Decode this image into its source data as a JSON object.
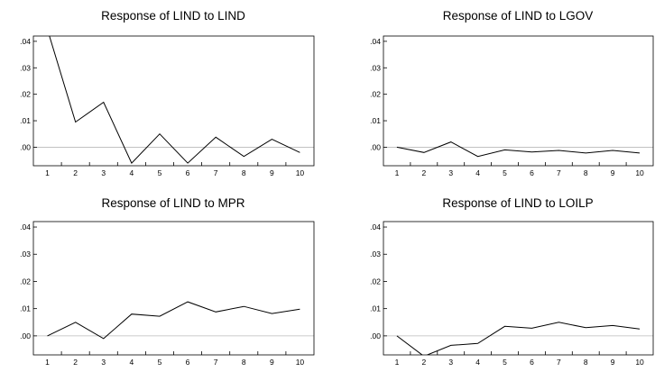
{
  "chart_data": [
    {
      "type": "line",
      "title": "Response of LIND to LIND",
      "x": [
        1,
        2,
        3,
        4,
        5,
        6,
        7,
        8,
        9,
        10
      ],
      "series": [
        {
          "values": [
            0.0446,
            0.0095,
            0.017,
            -0.006,
            0.005,
            -0.006,
            0.0038,
            -0.0035,
            0.003,
            -0.002
          ]
        }
      ],
      "ylim": [
        -0.007,
        0.042
      ],
      "yticks": [
        ".00",
        ".01",
        ".02",
        ".03",
        ".04"
      ],
      "xticks": [
        "1",
        "2",
        "3",
        "4",
        "5",
        "6",
        "7",
        "8",
        "9",
        "10"
      ],
      "zero_line": true
    },
    {
      "type": "line",
      "title": "Response of LIND to LGOV",
      "x": [
        1,
        2,
        3,
        4,
        5,
        6,
        7,
        8,
        9,
        10
      ],
      "series": [
        {
          "values": [
            0.0,
            -0.002,
            0.002,
            -0.0035,
            -0.001,
            -0.0018,
            -0.0012,
            -0.0022,
            -0.0012,
            -0.0022
          ]
        }
      ],
      "ylim": [
        -0.007,
        0.042
      ],
      "yticks": [
        ".00",
        ".01",
        ".02",
        ".03",
        ".04"
      ],
      "xticks": [
        "1",
        "2",
        "3",
        "4",
        "5",
        "6",
        "7",
        "8",
        "9",
        "10"
      ],
      "zero_line": true
    },
    {
      "type": "line",
      "title": "Response of LIND to MPR",
      "x": [
        1,
        2,
        3,
        4,
        5,
        6,
        7,
        8,
        9,
        10
      ],
      "series": [
        {
          "values": [
            0.0,
            0.005,
            -0.001,
            0.008,
            0.0072,
            0.0125,
            0.0088,
            0.0108,
            0.0082,
            0.0098
          ]
        }
      ],
      "ylim": [
        -0.007,
        0.042
      ],
      "yticks": [
        ".00",
        ".01",
        ".02",
        ".03",
        ".04"
      ],
      "xticks": [
        "1",
        "2",
        "3",
        "4",
        "5",
        "6",
        "7",
        "8",
        "9",
        "10"
      ],
      "zero_line": true
    },
    {
      "type": "line",
      "title": "Response of LIND to LOILP",
      "x": [
        1,
        2,
        3,
        4,
        5,
        6,
        7,
        8,
        9,
        10
      ],
      "series": [
        {
          "values": [
            0.0,
            -0.0075,
            -0.0035,
            -0.0028,
            0.0035,
            0.0028,
            0.005,
            0.003,
            0.0038,
            0.0025
          ]
        }
      ],
      "ylim": [
        -0.007,
        0.042
      ],
      "yticks": [
        ".00",
        ".01",
        ".02",
        ".03",
        ".04"
      ],
      "xticks": [
        "1",
        "2",
        "3",
        "4",
        "5",
        "6",
        "7",
        "8",
        "9",
        "10"
      ],
      "zero_line": true
    }
  ],
  "colors": {
    "line": "#000000",
    "zero_line": "#b8b8b8",
    "frame": "#000000"
  }
}
